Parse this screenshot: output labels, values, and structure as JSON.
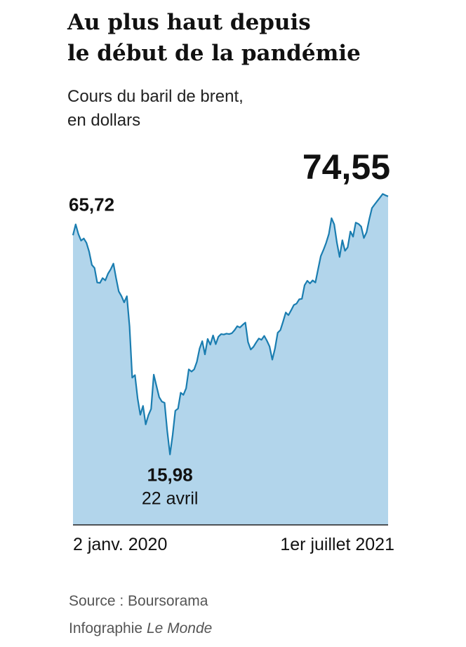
{
  "chart_data": {
    "type": "area",
    "title": [
      "Au plus haut depuis",
      "le début de la pandémie"
    ],
    "subtitle": [
      "Cours du baril de brent,",
      "en dollars"
    ],
    "color": "#1a7db0",
    "fill": "#b2d5eb",
    "categories": [
      "2 janv. 2020",
      null,
      null,
      null,
      null,
      null,
      null,
      null,
      null,
      null,
      null,
      null,
      null,
      null,
      null,
      null,
      null,
      null,
      null,
      null,
      null,
      null,
      null,
      null,
      null,
      null,
      null,
      null,
      null,
      null,
      null,
      null,
      null,
      null,
      null,
      null,
      "22 avril",
      null,
      null,
      null,
      null,
      null,
      null,
      null,
      null,
      null,
      null,
      null,
      null,
      null,
      null,
      null,
      null,
      null,
      null,
      null,
      null,
      null,
      null,
      null,
      null,
      null,
      null,
      null,
      null,
      null,
      null,
      null,
      null,
      null,
      null,
      null,
      null,
      null,
      null,
      null,
      null,
      null,
      null,
      null,
      null,
      null,
      null,
      null,
      null,
      null,
      null,
      null,
      null,
      null,
      null,
      null,
      null,
      null,
      null,
      null,
      null,
      null,
      null,
      null,
      null,
      null,
      null,
      null,
      null,
      null,
      null,
      null,
      null,
      null,
      null,
      null,
      null,
      null,
      null,
      null,
      null,
      "1er juillet 2021"
    ],
    "values": [
      65.72,
      68.2,
      66,
      64.5,
      65,
      64,
      62,
      59,
      58.3,
      55,
      54.9,
      56,
      55.5,
      57,
      58,
      59.3,
      56,
      53,
      51.9,
      50.5,
      51.9,
      45,
      33.4,
      34,
      28.7,
      25,
      27,
      22.8,
      24.9,
      26.3,
      34.1,
      31.5,
      29,
      28,
      27.7,
      21.3,
      15.98,
      20.4,
      25.9,
      26.4,
      30,
      29.5,
      31,
      35.3,
      34.8,
      35.3,
      37,
      40,
      41.7,
      38.7,
      42.2,
      40.9,
      43,
      41,
      42.7,
      43.3,
      43.2,
      43.4,
      43.3,
      43.5,
      44.2,
      45.1,
      44.8,
      45.4,
      45.9,
      41.5,
      39.8,
      40.4,
      41.4,
      42.3,
      42,
      42.9,
      41.8,
      40.5,
      37.5,
      40,
      43.6,
      44.2,
      46.1,
      48.2,
      47.6,
      48.7,
      49.9,
      50.2,
      51.2,
      51.3,
      54.4,
      55.4,
      54.8,
      55.5,
      55,
      58,
      61,
      62.4,
      64,
      66,
      69.6,
      68.2,
      64,
      60.8,
      64.6,
      62.2,
      63,
      66.6,
      65.4,
      68.6,
      68.3,
      67.7,
      65.1,
      66.4,
      69.3,
      71.9,
      72.7,
      73.5,
      74.3,
      75.1,
      74.8,
      74.55
    ],
    "value_labels": [
      "65,72",
      null,
      null,
      null,
      null,
      null,
      null,
      null,
      null,
      null,
      null,
      null,
      null,
      null,
      null,
      null,
      null,
      null,
      null,
      null,
      null,
      null,
      null,
      null,
      null,
      null,
      null,
      null,
      null,
      null,
      null,
      null,
      null,
      null,
      null,
      null,
      "15,98",
      null,
      null,
      null,
      null,
      null,
      null,
      null,
      null,
      null,
      null,
      null,
      null,
      null,
      null,
      null,
      null,
      null,
      null,
      null,
      null,
      null,
      null,
      null,
      null,
      null,
      null,
      null,
      null,
      null,
      null,
      null,
      null,
      null,
      null,
      null,
      null,
      null,
      null,
      null,
      null,
      null,
      null,
      null,
      null,
      null,
      null,
      null,
      null,
      null,
      null,
      null,
      null,
      null,
      null,
      null,
      null,
      null,
      null,
      null,
      null,
      null,
      null,
      null,
      null,
      null,
      null,
      null,
      null,
      null,
      null,
      null,
      null,
      null,
      null,
      null,
      null,
      null,
      null,
      null,
      null,
      "74,55"
    ],
    "source": "Source : Boursorama",
    "credit": [
      "Infographie",
      "Le Monde"
    ]
  }
}
